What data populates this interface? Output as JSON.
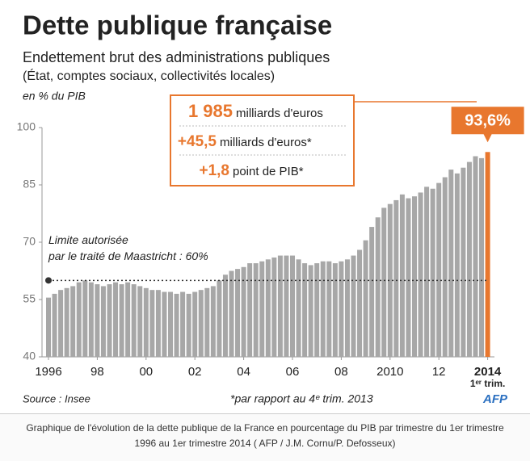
{
  "chart_data": {
    "type": "bar",
    "title": "Dette publique française",
    "subtitle": [
      "Endettement brut des administrations publiques",
      "(État, comptes sociaux, collectivités locales)"
    ],
    "y_label": "en % du PIB",
    "categories": [
      "1996",
      null,
      null,
      null,
      null,
      null,
      null,
      null,
      "98",
      null,
      null,
      null,
      null,
      null,
      null,
      null,
      "00",
      null,
      null,
      null,
      null,
      null,
      null,
      null,
      "02",
      null,
      null,
      null,
      null,
      null,
      null,
      null,
      "04",
      null,
      null,
      null,
      null,
      null,
      null,
      null,
      "06",
      null,
      null,
      null,
      null,
      null,
      null,
      null,
      "08",
      null,
      null,
      null,
      null,
      null,
      null,
      null,
      "2010",
      null,
      null,
      null,
      null,
      null,
      null,
      null,
      "12",
      null,
      null,
      null,
      null,
      null,
      null,
      null,
      "2014"
    ],
    "x_annotation": "1ᵉʳ trim.",
    "values": [
      55.5,
      56.5,
      57.5,
      58,
      58.5,
      59.5,
      60,
      59.5,
      59,
      58.5,
      59,
      59.5,
      59,
      59.5,
      59,
      58.5,
      58,
      57.5,
      57.5,
      57,
      57,
      56.5,
      57,
      56.5,
      57,
      57.5,
      58,
      58.5,
      60,
      61.5,
      62.5,
      63,
      63.5,
      64.5,
      64.5,
      65,
      65.5,
      66,
      66.5,
      66.5,
      66.5,
      65.5,
      64.5,
      64,
      64.5,
      65,
      65,
      64.5,
      65,
      65.5,
      66.5,
      68,
      70.5,
      74,
      76.5,
      79,
      80,
      81,
      82.5,
      81.5,
      82,
      83,
      84.5,
      84,
      85.5,
      87,
      89,
      88,
      89.5,
      91,
      92.5,
      92,
      93.6
    ],
    "value_labels": [
      null,
      null,
      null,
      null,
      null,
      null,
      null,
      null,
      null,
      null,
      null,
      null,
      null,
      null,
      null,
      null,
      null,
      null,
      null,
      null,
      null,
      null,
      null,
      null,
      null,
      null,
      null,
      null,
      null,
      null,
      null,
      null,
      null,
      null,
      null,
      null,
      null,
      null,
      null,
      null,
      null,
      null,
      null,
      null,
      null,
      null,
      null,
      null,
      null,
      null,
      null,
      null,
      null,
      null,
      null,
      null,
      null,
      null,
      null,
      null,
      null,
      null,
      null,
      null,
      null,
      null,
      null,
      null,
      null,
      null,
      null,
      null,
      "93,6%"
    ],
    "color": "#a7a7a7",
    "highlight_color": "#e8772e",
    "ylim": [
      40,
      100
    ],
    "yticks": [
      40,
      55,
      70,
      85,
      100
    ],
    "grid": false,
    "reference_line": {
      "value": 60,
      "label": [
        "Limite autorisée",
        "par le traité de Maastricht : 60%"
      ]
    },
    "infobox": [
      {
        "value": "1 985",
        "text": "milliards d'euros"
      },
      {
        "value": "+45,5",
        "text": "milliards d'euros*"
      },
      {
        "value": "+1,8",
        "text": "point de PIB*"
      }
    ],
    "source": "Source : Insee",
    "footnote": "*par rapport au 4ᵉ trim. 2013",
    "logo": "AFP"
  },
  "caption": "Graphique de l'évolution de la dette publique de la France en pourcentage du PIB par trimestre du 1er trimestre 1996 au 1er trimestre 2014 ( AFP / J.M. Cornu/P. Defosseux)"
}
